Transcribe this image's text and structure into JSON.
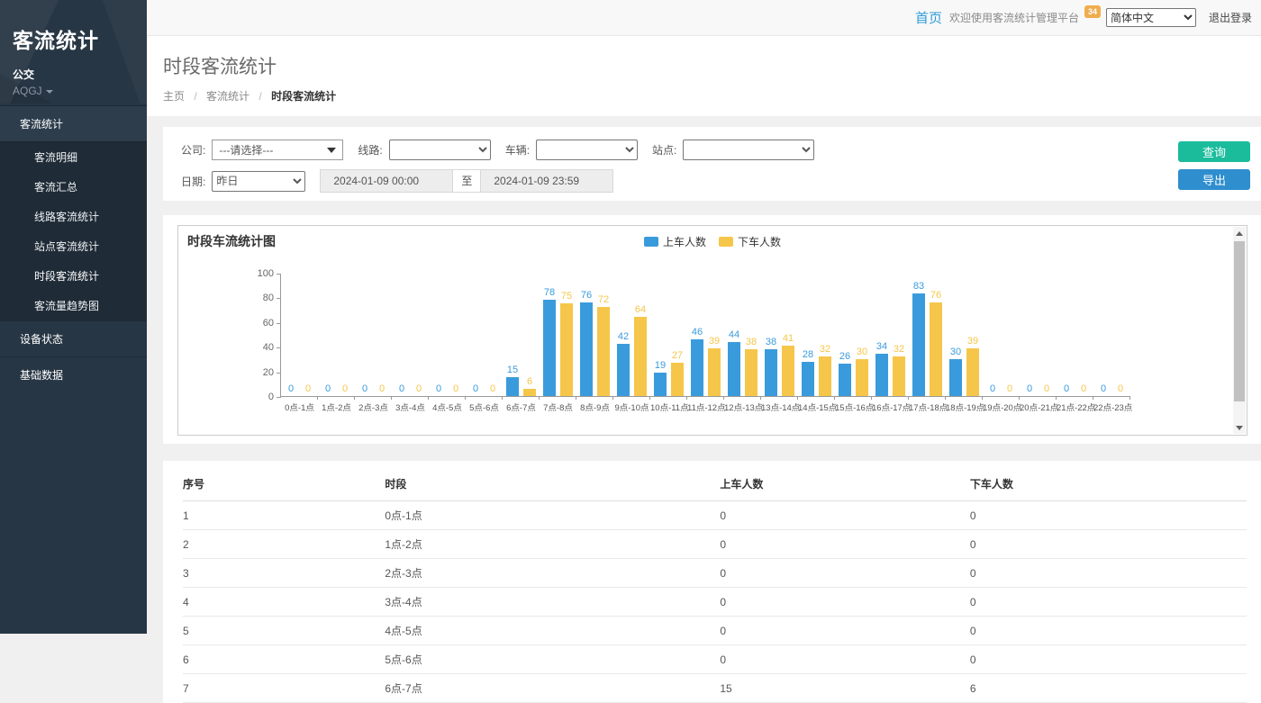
{
  "sidebar": {
    "brand": "客流统计",
    "org": "公交",
    "user": "AQGJ",
    "menu": {
      "parent": "客流统计",
      "items": [
        "客流明细",
        "客流汇总",
        "线路客流统计",
        "站点客流统计",
        "时段客流统计",
        "客流量趋势图"
      ],
      "active_item": "时段客流统计",
      "others": [
        "设备状态",
        "基础数据"
      ]
    }
  },
  "topbar": {
    "home": "首页",
    "welcome": "欢迎使用客流统计管理平台",
    "badge": "34",
    "language_selected": "简体中文",
    "logout": "退出登录"
  },
  "page": {
    "title": "时段客流统计",
    "breadcrumb": [
      "主页",
      "客流统计",
      "时段客流统计"
    ]
  },
  "filters": {
    "company_label": "公司:",
    "company_value": "---请选择---",
    "line_label": "线路:",
    "line_value": "",
    "vehicle_label": "车辆:",
    "vehicle_value": "",
    "station_label": "站点:",
    "station_value": "",
    "date_label": "日期:",
    "date_preset": "昨日",
    "date_from": "2024-01-09 00:00",
    "date_to_separator": "至",
    "date_to": "2024-01-09 23:59",
    "query_button": "查询",
    "export_button": "导出"
  },
  "chart_data": {
    "type": "bar",
    "title": "时段车流统计图",
    "categories": [
      "0点-1点",
      "1点-2点",
      "2点-3点",
      "3点-4点",
      "4点-5点",
      "5点-6点",
      "6点-7点",
      "7点-8点",
      "8点-9点",
      "9点-10点",
      "10点-11点",
      "11点-12点",
      "12点-13点",
      "13点-14点",
      "14点-15点",
      "15点-16点",
      "16点-17点",
      "17点-18点",
      "18点-19点",
      "19点-20点",
      "20点-21点",
      "21点-22点",
      "22点-23点"
    ],
    "series": [
      {
        "name": "上车人数",
        "color": "#3a9bdc",
        "values": [
          0,
          0,
          0,
          0,
          0,
          0,
          15,
          78,
          76,
          42,
          19,
          46,
          44,
          38,
          28,
          26,
          34,
          83,
          30,
          0,
          0,
          0,
          0
        ]
      },
      {
        "name": "下车人数",
        "color": "#f6c64a",
        "values": [
          0,
          0,
          0,
          0,
          0,
          0,
          6,
          75,
          72,
          64,
          27,
          39,
          38,
          41,
          32,
          30,
          32,
          76,
          39,
          0,
          0,
          0,
          0
        ]
      }
    ],
    "ylim": [
      0,
      100
    ],
    "yticks": [
      0,
      20,
      40,
      60,
      80,
      100
    ],
    "legend_position": "top-center",
    "grid": false
  },
  "table": {
    "columns": [
      "序号",
      "时段",
      "上车人数",
      "下车人数"
    ],
    "rows": [
      [
        1,
        "0点-1点",
        0,
        0
      ],
      [
        2,
        "1点-2点",
        0,
        0
      ],
      [
        3,
        "2点-3点",
        0,
        0
      ],
      [
        4,
        "3点-4点",
        0,
        0
      ],
      [
        5,
        "4点-5点",
        0,
        0
      ],
      [
        6,
        "5点-6点",
        0,
        0
      ],
      [
        7,
        "6点-7点",
        15,
        6
      ]
    ]
  }
}
